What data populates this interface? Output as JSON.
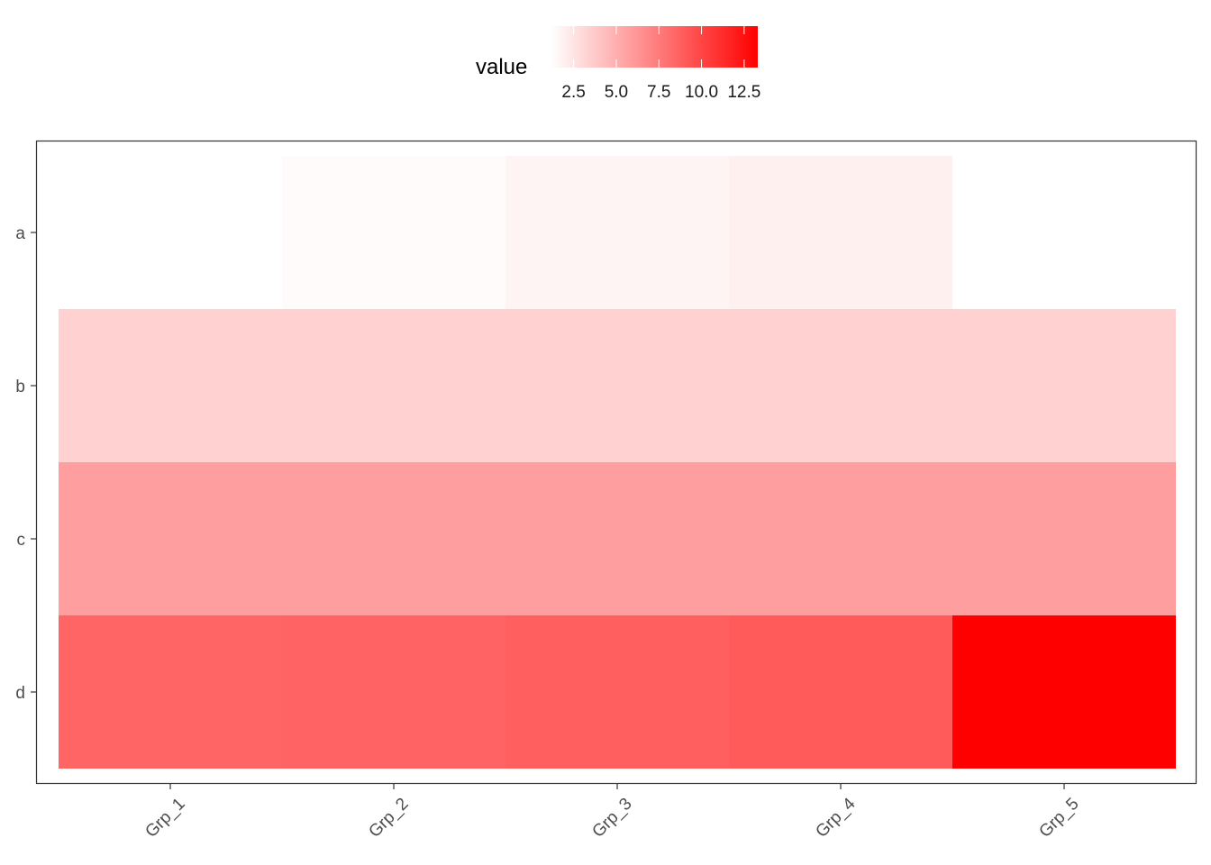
{
  "chart_data": {
    "type": "heatmap",
    "title": "",
    "xlabel": "",
    "ylabel": "",
    "x_categories": [
      "Grp_1",
      "Grp_2",
      "Grp_3",
      "Grp_4",
      "Grp_5"
    ],
    "y_categories": [
      "a",
      "b",
      "c",
      "d"
    ],
    "cells": [
      {
        "x": "Grp_1",
        "y": "a",
        "value": 1.2
      },
      {
        "x": "Grp_2",
        "y": "a",
        "value": 1.4
      },
      {
        "x": "Grp_3",
        "y": "a",
        "value": 1.7
      },
      {
        "x": "Grp_4",
        "y": "a",
        "value": 1.9
      },
      {
        "x": "Grp_1",
        "y": "b",
        "value": 3.4
      },
      {
        "x": "Grp_2",
        "y": "b",
        "value": 3.4
      },
      {
        "x": "Grp_3",
        "y": "b",
        "value": 3.4
      },
      {
        "x": "Grp_4",
        "y": "b",
        "value": 3.4
      },
      {
        "x": "Grp_5",
        "y": "b",
        "value": 3.4
      },
      {
        "x": "Grp_1",
        "y": "c",
        "value": 5.8
      },
      {
        "x": "Grp_2",
        "y": "c",
        "value": 5.8
      },
      {
        "x": "Grp_3",
        "y": "c",
        "value": 5.8
      },
      {
        "x": "Grp_4",
        "y": "c",
        "value": 5.8
      },
      {
        "x": "Grp_5",
        "y": "c",
        "value": 5.8
      },
      {
        "x": "Grp_1",
        "y": "d",
        "value": 8.5
      },
      {
        "x": "Grp_2",
        "y": "d",
        "value": 8.6
      },
      {
        "x": "Grp_3",
        "y": "d",
        "value": 8.8
      },
      {
        "x": "Grp_4",
        "y": "d",
        "value": 9.0
      },
      {
        "x": "Grp_5",
        "y": "d",
        "value": 13.3
      }
    ],
    "legend": {
      "title": "value",
      "placement": "top",
      "breaks": [
        2.5,
        5.0,
        7.5,
        10.0,
        12.5
      ],
      "break_labels": [
        "2.5",
        "5.0",
        "7.5",
        "10.0",
        "12.5"
      ],
      "limits": [
        1.2,
        13.3
      ],
      "low_color": "#FFFFFF",
      "high_color": "#FF0000"
    },
    "grid": false
  }
}
